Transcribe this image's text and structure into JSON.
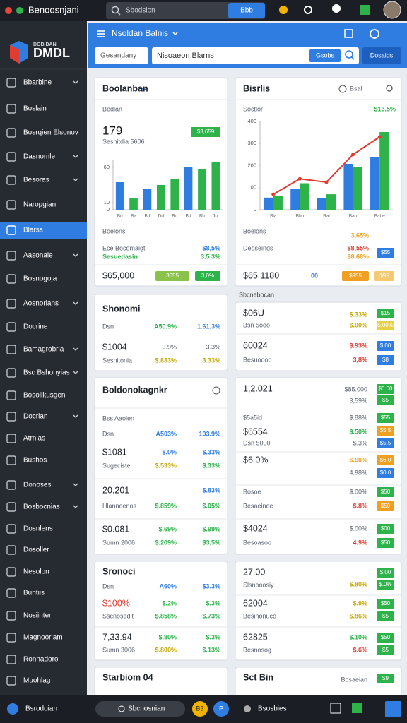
{
  "topbar": {
    "title": "Benoosnjani",
    "search": "Sbodsion",
    "button": "Bbb"
  },
  "sidebar": {
    "brand_small": "DOBIDAN",
    "brand": "DMDL",
    "items": [
      "Bbarbine",
      "Boslain",
      "Bosrqien Elsonov",
      "Dasnomle",
      "Besoras",
      "Naropgian",
      "Blarss",
      "Aasonaie",
      "Bosnogoja",
      "Aosnorians",
      "Docrine",
      "Bamagrobria",
      "Bsc Bshonyias",
      "Bosolikusgen",
      "Docrian",
      "Atrnias",
      "Bushos",
      "Donoses",
      "Bosbocnias",
      "Dosnlens",
      "Dosoller",
      "Nesolon",
      "Buntiis",
      "Nosiinter",
      "Magnooriam",
      "Ronnadoro",
      "Muohlag"
    ],
    "active": 6
  },
  "header": {
    "title": "Nsoldan Balnis",
    "filter": "Gesandany",
    "search": "Nisoaeon Blarns",
    "search_button": "Gsobs",
    "button": "Dosaids"
  },
  "section_label": "Sbcnebocan",
  "cards": [
    {
      "texts": [
        "Boolanban",
        "Bedlan",
        "179",
        "Sesnitdia 5606",
        "Boelons",
        "Ece Bocomaigt",
        "Sesuedasin",
        "$8,5%",
        "3.5 3%",
        "$65,000"
      ],
      "badges": [
        "$3,659",
        "3655",
        "3,0%"
      ],
      "chart": {
        "type": "bar",
        "categories": [
          "Bo",
          "Ba",
          "Bd",
          "Dd",
          "Bd",
          "Bd",
          "Bb",
          "Jul"
        ],
        "values": [
          39,
          16,
          29,
          35,
          44,
          60,
          58,
          67
        ],
        "colors": [
          "#2f7de1",
          "#2db34a",
          "#2f7de1",
          "#2db34a",
          "#2db34a",
          "#2f7de1",
          "#2db34a",
          "#2db34a"
        ],
        "ylim": [
          0,
          70
        ],
        "yticks": [
          0,
          10,
          60
        ]
      }
    },
    {
      "texts": [
        "Bisrlis",
        "Bsal",
        "Soctlor",
        "$13.5%",
        "Boelons",
        "3,65%",
        "Deoseinds",
        "$8,55%",
        "$8.68%",
        "$65 1180",
        "00"
      ],
      "badges": [
        "$55",
        "$955",
        "$95"
      ],
      "chart": {
        "type": "bar",
        "categories": [
          "Bia",
          "Bbo",
          "Bal",
          "Bao",
          "Bahe"
        ],
        "series": [
          {
            "color": "#2f7de1",
            "values": [
              55,
              96,
              54,
              208,
              240
            ]
          },
          {
            "color": "#2db34a",
            "values": [
              61,
              120,
              70,
              192,
              352
            ]
          },
          {
            "type": "line",
            "color": "#e03c31",
            "values": [
              70,
              140,
              125,
              250,
              330
            ]
          }
        ],
        "ylim": [
          0,
          400
        ],
        "yticks": [
          0,
          100,
          200,
          300,
          400
        ]
      }
    },
    {
      "texts": [
        "Shonomi",
        "Dsn",
        "A50.9%",
        "1.61.3%",
        "$1004",
        "3.9%",
        "3.3%",
        "Sesnitonia",
        "$.833%",
        "3.33%"
      ],
      "badges": []
    },
    {
      "texts": [
        "$06U",
        "$.33%",
        "Bsn 5ooo",
        "$.00%",
        "60024",
        "$.93%",
        "Besuoooo",
        "3,8%"
      ],
      "badges": [
        "$15",
        "$.00%",
        "$.00",
        "$8"
      ]
    },
    {
      "texts": [
        "Boldonokagnkr",
        "Bss Aaolen",
        "Dsn",
        "A503%",
        "103.9%",
        "$1081",
        "$.0%",
        "$.33%",
        "Sugeciste",
        "$.533%",
        "$.33%",
        "20.201",
        "$.83%",
        "Hlannoenos",
        "$.859%",
        "$.05%",
        "$0.081",
        "$.69%",
        "$.99%",
        "Sumn 2006",
        "$.209%",
        "$3.5%"
      ],
      "badges": []
    },
    {
      "texts": [
        "1,2.021",
        "$85.000",
        "3,59%",
        "$5a5id",
        "$.88%",
        "$6554",
        "$.50%",
        "Dsn 5000",
        "$.3%",
        "$6.0%",
        "$.60%",
        "4.98%",
        "Bosoe",
        "$.00%",
        "Besaeinoe",
        "$.8%",
        "$4024",
        "$.00%",
        "Besoasoo",
        "4.9%"
      ],
      "badges": [
        "$0.00",
        "$5",
        "$55",
        "$5.5",
        "$5.5",
        "$6.0",
        "$0.0",
        "$50",
        "$50",
        "$00",
        "$50"
      ]
    },
    {
      "texts": [
        "Sronoci",
        "Dsn",
        "A60%",
        "$3.3%",
        "$100%",
        "$.2%",
        "$.3%",
        "Sscnosedit",
        "$.858%",
        "$.73%",
        "7,33.94",
        "$.80%",
        "$.3%",
        "Sumn 3006",
        "$.800%",
        "$.13%"
      ],
      "badges": []
    },
    {
      "texts": [
        "27.00",
        "$.80%",
        "Slsnooosiy",
        "62004",
        "$.9%",
        "Besinonuco",
        "$.86%",
        "62825",
        "$.10%",
        "Besnosog",
        "$.6%"
      ],
      "badges": [
        "$.00",
        "$.0%",
        "$50",
        "$5",
        "$50",
        "$5"
      ]
    },
    {
      "texts": [
        "Starbiom 04"
      ],
      "badges": []
    },
    {
      "texts": [
        "Sct Bin",
        "Bosaeian"
      ],
      "badges": [
        "$9"
      ]
    }
  ],
  "bottombar": {
    "left": "Bsrodoian",
    "search": "Sbcnosnian",
    "badge_a": "B3",
    "badge_b": "P",
    "center": "Bsosbies"
  }
}
